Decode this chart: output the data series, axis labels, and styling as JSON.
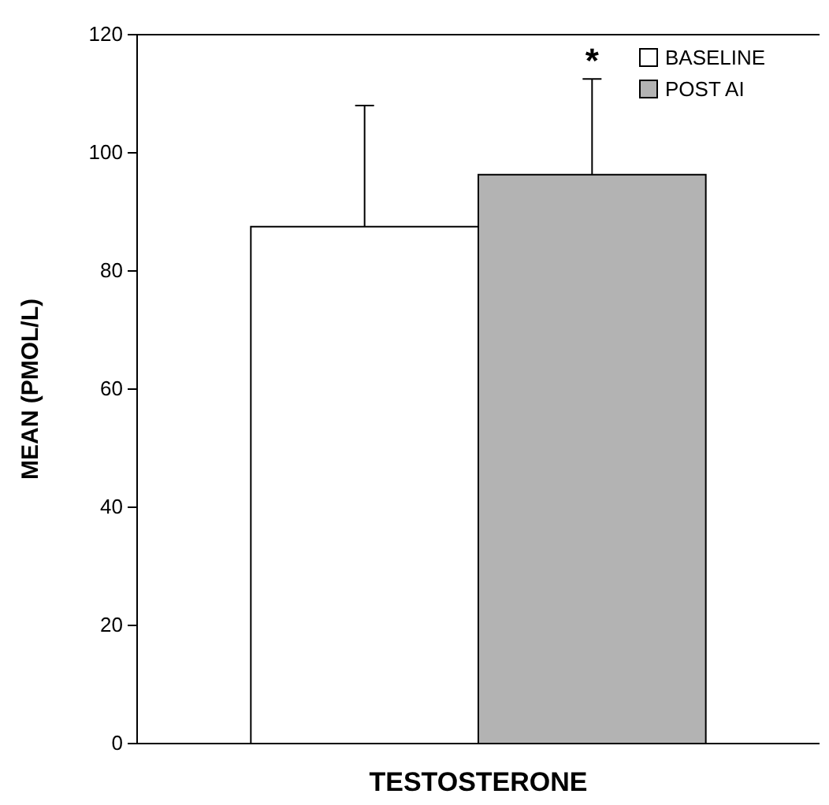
{
  "chart_data": {
    "type": "bar",
    "ylabel": "MEAN (PMOL/L)",
    "categories": [
      "TESTOSTERONE"
    ],
    "series": [
      {
        "name": "BASELINE",
        "color": "#ffffff",
        "values": [
          87.5
        ],
        "errors": [
          [
            87.5,
            108
          ]
        ]
      },
      {
        "name": "POST AI",
        "color": "#b3b3b3",
        "values": [
          96.3
        ],
        "errors": [
          [
            96.3,
            112.5
          ]
        ]
      }
    ],
    "ylim": [
      0,
      120
    ],
    "yticks": [
      0,
      20,
      40,
      60,
      80,
      100,
      120
    ],
    "legend": "top right",
    "grid": false,
    "annotations": [
      "*"
    ]
  }
}
